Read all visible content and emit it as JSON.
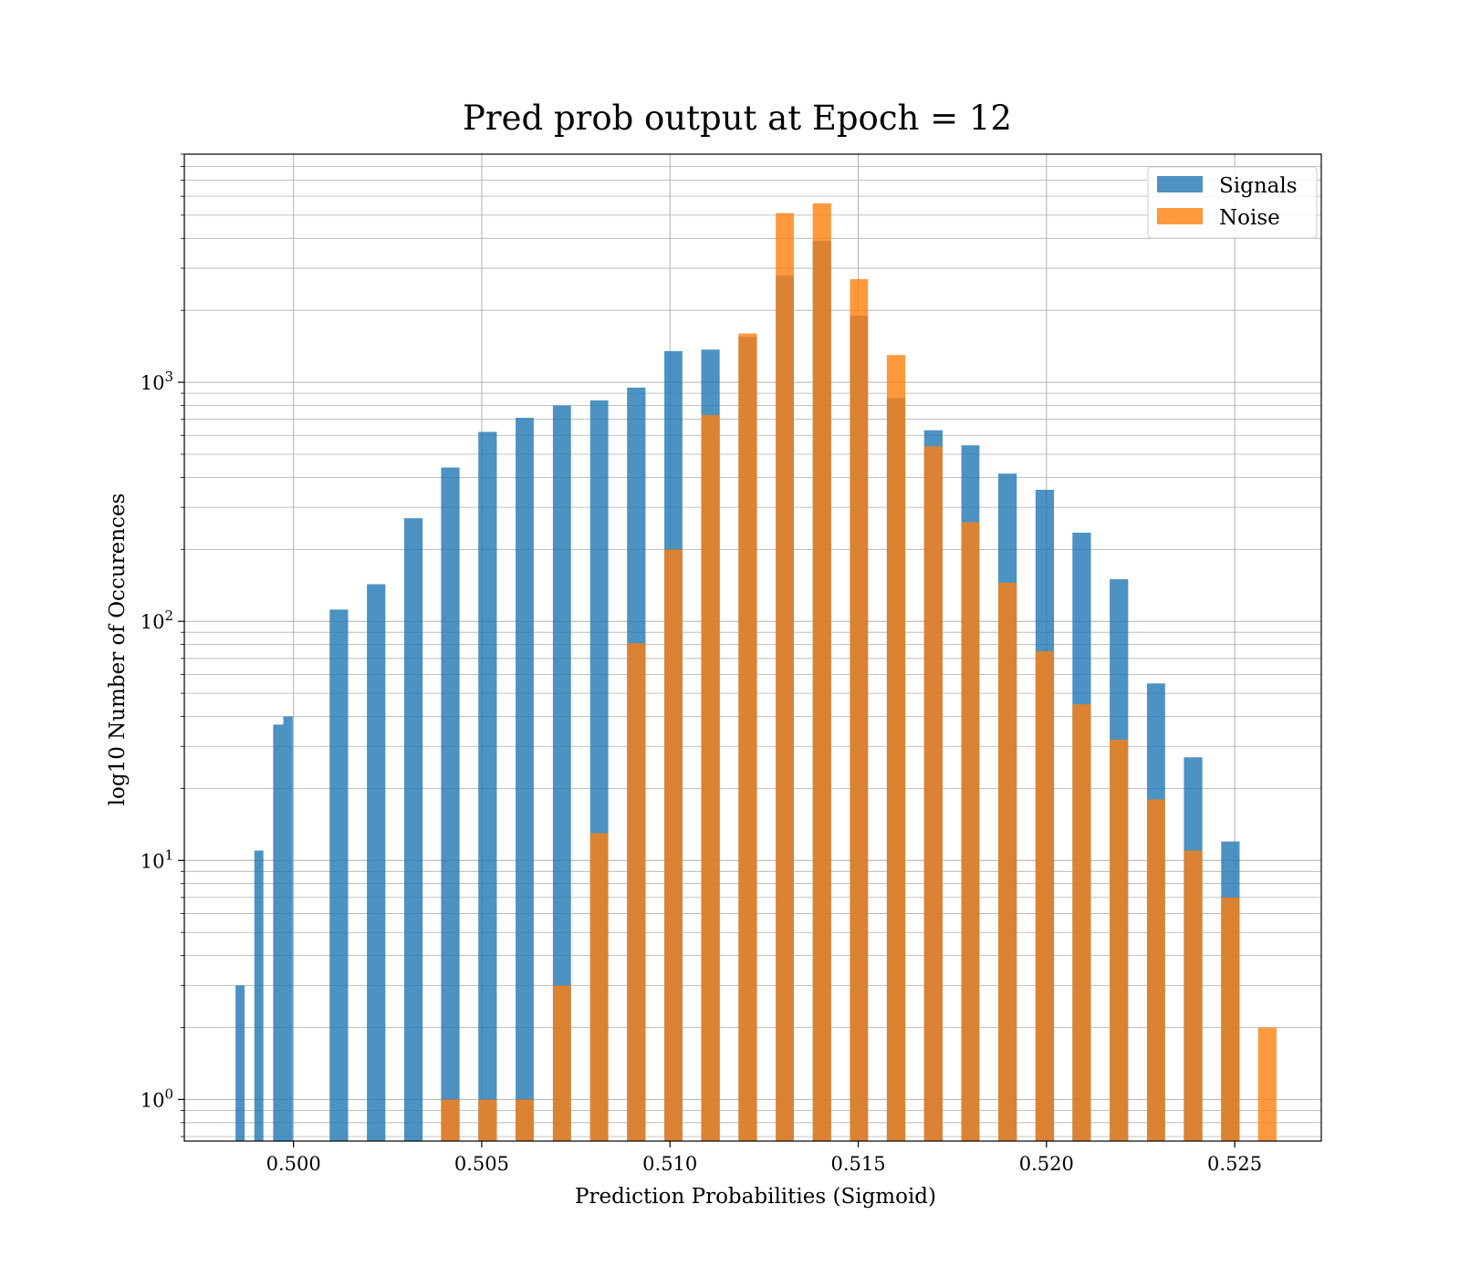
{
  "chart_data": {
    "type": "bar",
    "title": "Pred prob output at Epoch = 12",
    "xlabel": "Prediction Probabilities (Sigmoid)",
    "ylabel": "log10 Number of Occurences",
    "yscale": "log",
    "xlim": [
      0.4971,
      0.5273
    ],
    "ylim": [
      0.67,
      9000
    ],
    "grid": true,
    "legend_position": "top-right",
    "x_tick_labels": [
      "0.500",
      "0.505",
      "0.510",
      "0.515",
      "0.520",
      "0.525"
    ],
    "x_ticks": [
      0.5,
      0.505,
      0.51,
      0.515,
      0.52,
      0.525
    ],
    "y_ticks": [
      1,
      10,
      100,
      1000
    ],
    "y_tick_labels": [
      {
        "base": "10",
        "exp": "0"
      },
      {
        "base": "10",
        "exp": "1"
      },
      {
        "base": "10",
        "exp": "2"
      },
      {
        "base": "10",
        "exp": "3"
      }
    ],
    "colors": {
      "Signals": "#1f77b4",
      "Noise": "#ff7f0e"
    },
    "series": [
      {
        "name": "Signals",
        "bars": [
          {
            "x0": 0.49846,
            "x1": 0.4987,
            "y": 3
          },
          {
            "x0": 0.49896,
            "x1": 0.4992,
            "y": 11
          },
          {
            "x0": 0.49946,
            "x1": 0.49973,
            "y": 37
          },
          {
            "x0": 0.49973,
            "x1": 0.49998,
            "y": 40
          },
          {
            "x0": 0.50096,
            "x1": 0.50145,
            "y": 112
          },
          {
            "x0": 0.50195,
            "x1": 0.50244,
            "y": 143
          },
          {
            "x0": 0.50294,
            "x1": 0.50343,
            "y": 270
          },
          {
            "x0": 0.50392,
            "x1": 0.50441,
            "y": 440
          },
          {
            "x0": 0.50491,
            "x1": 0.5054,
            "y": 620
          },
          {
            "x0": 0.5059,
            "x1": 0.50638,
            "y": 710
          },
          {
            "x0": 0.50689,
            "x1": 0.50737,
            "y": 800
          },
          {
            "x0": 0.50788,
            "x1": 0.50836,
            "y": 840
          },
          {
            "x0": 0.50886,
            "x1": 0.50935,
            "y": 950
          },
          {
            "x0": 0.50985,
            "x1": 0.51033,
            "y": 1350
          },
          {
            "x0": 0.51083,
            "x1": 0.51132,
            "y": 1370
          },
          {
            "x0": 0.51182,
            "x1": 0.51231,
            "y": 1550
          },
          {
            "x0": 0.51281,
            "x1": 0.51329,
            "y": 2800
          },
          {
            "x0": 0.51379,
            "x1": 0.51428,
            "y": 3900
          },
          {
            "x0": 0.51478,
            "x1": 0.51526,
            "y": 1900
          },
          {
            "x0": 0.51576,
            "x1": 0.51625,
            "y": 860
          },
          {
            "x0": 0.51675,
            "x1": 0.51724,
            "y": 630
          },
          {
            "x0": 0.51774,
            "x1": 0.51822,
            "y": 545
          },
          {
            "x0": 0.51872,
            "x1": 0.51921,
            "y": 415
          },
          {
            "x0": 0.51971,
            "x1": 0.5202,
            "y": 355
          },
          {
            "x0": 0.52069,
            "x1": 0.52118,
            "y": 235
          },
          {
            "x0": 0.52168,
            "x1": 0.52217,
            "y": 150
          },
          {
            "x0": 0.52267,
            "x1": 0.52315,
            "y": 55
          },
          {
            "x0": 0.52365,
            "x1": 0.52414,
            "y": 27
          },
          {
            "x0": 0.52464,
            "x1": 0.52513,
            "y": 12
          }
        ]
      },
      {
        "name": "Noise",
        "bars": [
          {
            "x0": 0.50392,
            "x1": 0.50441,
            "y": 1
          },
          {
            "x0": 0.50491,
            "x1": 0.5054,
            "y": 1
          },
          {
            "x0": 0.5059,
            "x1": 0.50638,
            "y": 1
          },
          {
            "x0": 0.50689,
            "x1": 0.50737,
            "y": 3
          },
          {
            "x0": 0.50788,
            "x1": 0.50836,
            "y": 13
          },
          {
            "x0": 0.50886,
            "x1": 0.50935,
            "y": 81
          },
          {
            "x0": 0.50985,
            "x1": 0.51033,
            "y": 200
          },
          {
            "x0": 0.51083,
            "x1": 0.51132,
            "y": 730
          },
          {
            "x0": 0.51182,
            "x1": 0.51231,
            "y": 1600
          },
          {
            "x0": 0.51281,
            "x1": 0.51329,
            "y": 5100
          },
          {
            "x0": 0.51379,
            "x1": 0.51428,
            "y": 5600
          },
          {
            "x0": 0.51478,
            "x1": 0.51526,
            "y": 2700
          },
          {
            "x0": 0.51576,
            "x1": 0.51625,
            "y": 1300
          },
          {
            "x0": 0.51675,
            "x1": 0.51724,
            "y": 540
          },
          {
            "x0": 0.51774,
            "x1": 0.51822,
            "y": 260
          },
          {
            "x0": 0.51872,
            "x1": 0.51921,
            "y": 145
          },
          {
            "x0": 0.51971,
            "x1": 0.5202,
            "y": 75
          },
          {
            "x0": 0.52069,
            "x1": 0.52118,
            "y": 45
          },
          {
            "x0": 0.52168,
            "x1": 0.52217,
            "y": 32
          },
          {
            "x0": 0.52267,
            "x1": 0.52315,
            "y": 18
          },
          {
            "x0": 0.52365,
            "x1": 0.52414,
            "y": 11
          },
          {
            "x0": 0.52464,
            "x1": 0.52513,
            "y": 7
          },
          {
            "x0": 0.52562,
            "x1": 0.52611,
            "y": 2
          }
        ]
      }
    ]
  }
}
